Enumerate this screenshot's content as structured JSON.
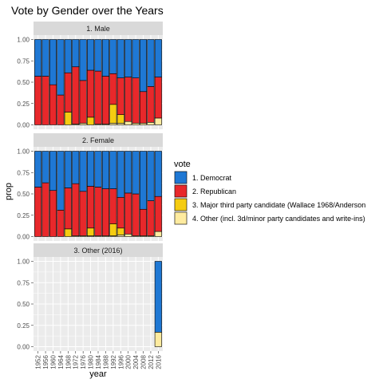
{
  "chart_data": {
    "type": "bar",
    "title": "Vote by Gender over the Years",
    "xlabel": "year",
    "ylabel": "prop",
    "ylim": [
      0,
      1
    ],
    "y_ticks": [
      "0.00",
      "0.25",
      "0.50",
      "0.75",
      "1.00"
    ],
    "y_tick_values": [
      0,
      0.25,
      0.5,
      0.75,
      1
    ],
    "categories": [
      "1952",
      "1956",
      "1960",
      "1964",
      "1968",
      "1972",
      "1976",
      "1980",
      "1984",
      "1988",
      "1992",
      "1996",
      "2000",
      "2004",
      "2008",
      "2012",
      "2016"
    ],
    "legend_title": "vote",
    "legend_position": "right",
    "grid": true,
    "series": [
      {
        "name": "1. Democrat",
        "color": "#1f78d4"
      },
      {
        "name": "2. Republican",
        "color": "#e8282b"
      },
      {
        "name": "3. Major third party candidate (Wallace 1968/Anderson",
        "color": "#f5cc11"
      },
      {
        "name": "4. Other (incl. 3d/minor party candidates and write-ins)",
        "color": "#feeb9f"
      }
    ],
    "panels": [
      {
        "label": "1. Male",
        "show_x_labels": false,
        "bars": {
          "1952": [
            0.43,
            0.57,
            0.0,
            0.0
          ],
          "1956": [
            0.43,
            0.57,
            0.0,
            0.0
          ],
          "1960": [
            0.53,
            0.47,
            0.0,
            0.0
          ],
          "1964": [
            0.65,
            0.35,
            0.0,
            0.0
          ],
          "1968": [
            0.39,
            0.46,
            0.15,
            0.0
          ],
          "1972": [
            0.32,
            0.67,
            0.0,
            0.01
          ],
          "1976": [
            0.48,
            0.5,
            0.0,
            0.02
          ],
          "1980": [
            0.36,
            0.55,
            0.09,
            0.0
          ],
          "1984": [
            0.37,
            0.62,
            0.0,
            0.01
          ],
          "1988": [
            0.43,
            0.56,
            0.0,
            0.01
          ],
          "1992": [
            0.4,
            0.36,
            0.22,
            0.02
          ],
          "1996": [
            0.45,
            0.43,
            0.1,
            0.02
          ],
          "2000": [
            0.44,
            0.52,
            0.0,
            0.04
          ],
          "2004": [
            0.45,
            0.53,
            0.0,
            0.02
          ],
          "2008": [
            0.61,
            0.37,
            0.0,
            0.02
          ],
          "2012": [
            0.55,
            0.42,
            0.0,
            0.03
          ],
          "2016": [
            0.44,
            0.48,
            0.0,
            0.08
          ]
        }
      },
      {
        "label": "2. Female",
        "show_x_labels": false,
        "bars": {
          "1952": [
            0.42,
            0.58,
            0.0,
            0.0
          ],
          "1956": [
            0.37,
            0.63,
            0.0,
            0.0
          ],
          "1960": [
            0.46,
            0.54,
            0.0,
            0.0
          ],
          "1964": [
            0.69,
            0.31,
            0.0,
            0.0
          ],
          "1968": [
            0.43,
            0.48,
            0.09,
            0.0
          ],
          "1972": [
            0.38,
            0.61,
            0.0,
            0.01
          ],
          "1976": [
            0.47,
            0.52,
            0.0,
            0.01
          ],
          "1980": [
            0.41,
            0.49,
            0.09,
            0.01
          ],
          "1984": [
            0.42,
            0.57,
            0.0,
            0.01
          ],
          "1988": [
            0.44,
            0.55,
            0.0,
            0.01
          ],
          "1992": [
            0.44,
            0.41,
            0.14,
            0.01
          ],
          "1996": [
            0.54,
            0.36,
            0.08,
            0.02
          ],
          "2000": [
            0.49,
            0.48,
            0.0,
            0.03
          ],
          "2004": [
            0.5,
            0.49,
            0.0,
            0.01
          ],
          "2008": [
            0.68,
            0.31,
            0.0,
            0.01
          ],
          "2012": [
            0.58,
            0.41,
            0.0,
            0.01
          ],
          "2016": [
            0.53,
            0.41,
            0.0,
            0.06
          ]
        }
      },
      {
        "label": "3. Other (2016)",
        "show_x_labels": true,
        "bars": {
          "2016": [
            0.83,
            0.0,
            0.0,
            0.17
          ]
        }
      }
    ]
  }
}
